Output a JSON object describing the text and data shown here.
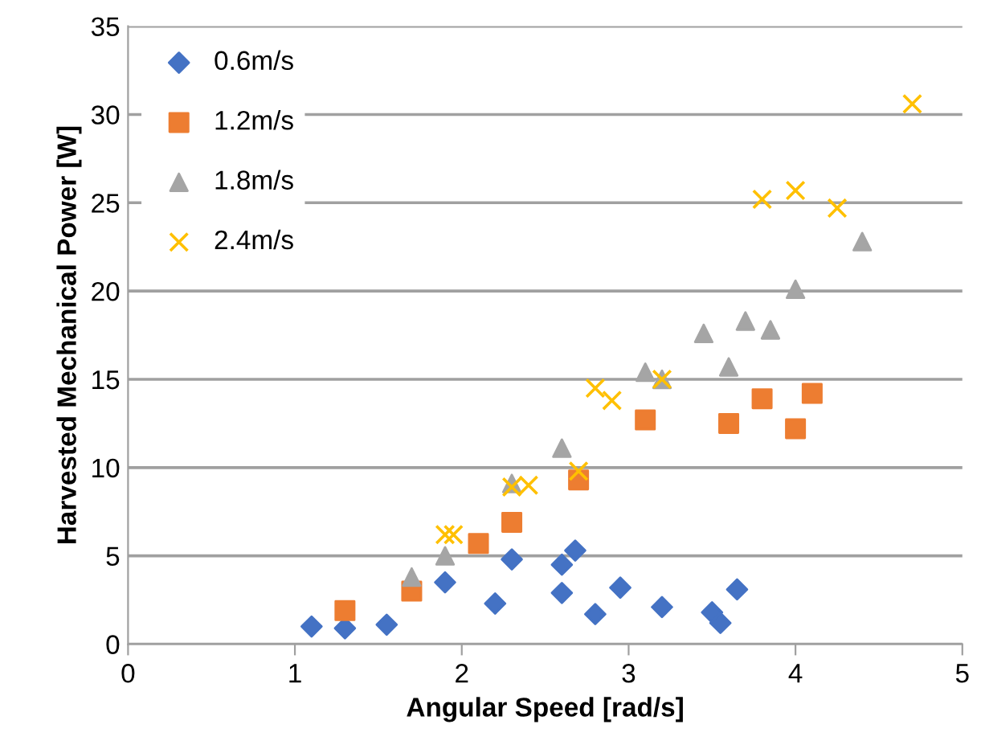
{
  "chart_data": {
    "type": "scatter",
    "xlabel": "Angular Speed [rad/s]",
    "ylabel": "Harvested Mechanical Power [W]",
    "xlim": [
      0,
      5
    ],
    "xticks": [
      0,
      1,
      2,
      3,
      4,
      5
    ],
    "ylim": [
      0,
      35
    ],
    "yticks": [
      0,
      5,
      10,
      15,
      20,
      25,
      30,
      35
    ],
    "grid": "y",
    "legend": "top left",
    "series": [
      {
        "name": "0.6m/s",
        "color": "#4472c4",
        "marker": "diamond",
        "x": [
          1.1,
          1.3,
          1.55,
          1.9,
          2.2,
          2.3,
          2.6,
          2.6,
          2.68,
          2.8,
          2.95,
          3.2,
          3.5,
          3.55,
          3.65
        ],
        "values": [
          1.0,
          0.9,
          1.1,
          3.5,
          2.3,
          4.8,
          4.5,
          2.9,
          5.3,
          1.7,
          3.2,
          2.1,
          1.8,
          1.2,
          3.1
        ]
      },
      {
        "name": "1.2m/s",
        "color": "#ed7d31",
        "marker": "square",
        "x": [
          1.3,
          1.7,
          2.1,
          2.3,
          2.7,
          3.1,
          3.6,
          3.8,
          4.0,
          4.1
        ],
        "values": [
          1.9,
          3.0,
          5.7,
          6.9,
          9.3,
          12.7,
          12.5,
          13.9,
          12.2,
          14.2
        ]
      },
      {
        "name": "1.8m/s",
        "color": "#a5a5a5",
        "marker": "triangle",
        "x": [
          1.7,
          1.9,
          2.3,
          2.6,
          3.1,
          3.2,
          3.45,
          3.6,
          3.7,
          3.85,
          4.0,
          4.4
        ],
        "values": [
          3.8,
          5.0,
          9.1,
          11.1,
          15.4,
          15.0,
          17.6,
          15.7,
          18.3,
          17.8,
          20.1,
          22.8
        ]
      },
      {
        "name": "2.4m/s",
        "color": "#ffc000",
        "marker": "cross",
        "x": [
          1.9,
          1.95,
          2.3,
          2.4,
          2.7,
          2.8,
          2.9,
          3.2,
          3.8,
          4.0,
          4.25,
          4.7
        ],
        "values": [
          6.2,
          6.2,
          8.9,
          9.0,
          9.8,
          14.5,
          13.8,
          15.0,
          25.2,
          25.7,
          24.7,
          30.6
        ]
      }
    ]
  }
}
